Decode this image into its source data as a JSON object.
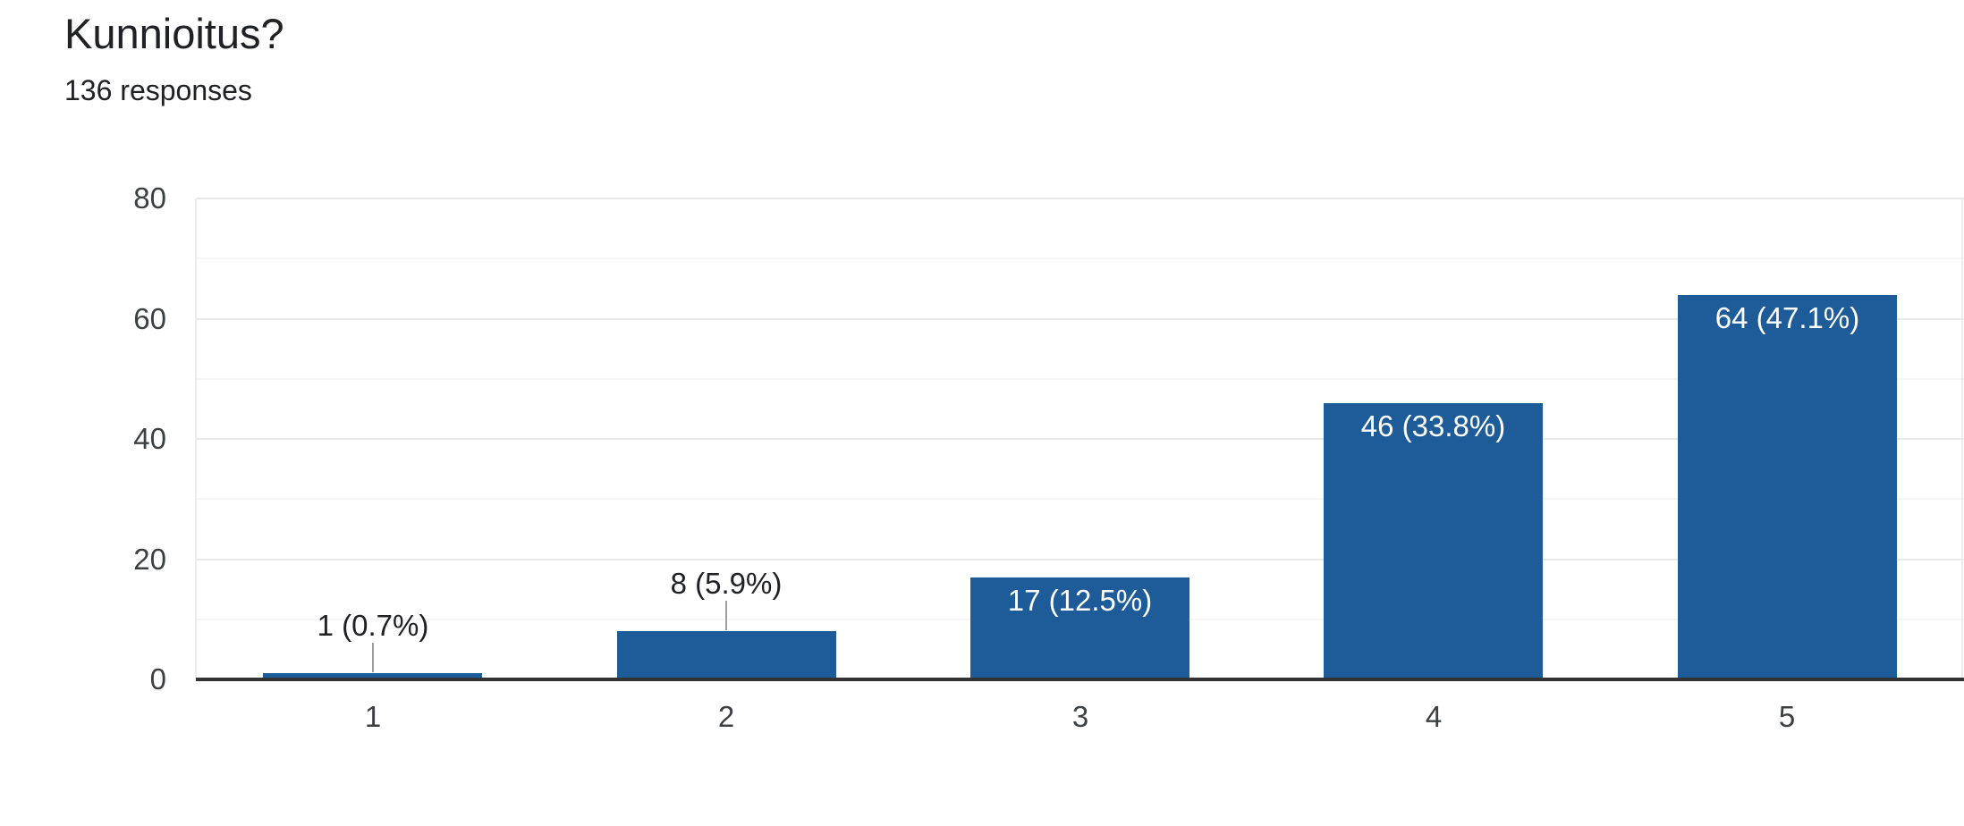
{
  "header": {
    "title": "Kunnioitus?",
    "subtitle": "136 responses"
  },
  "chart_data": {
    "type": "bar",
    "title": "Kunnioitus?",
    "subtitle": "136 responses",
    "total_responses": 136,
    "categories": [
      "1",
      "2",
      "3",
      "4",
      "5"
    ],
    "values": [
      1,
      8,
      17,
      46,
      64
    ],
    "percentages": [
      0.7,
      5.9,
      12.5,
      33.8,
      47.1
    ],
    "bar_labels": [
      "1 (0.7%)",
      "8 (5.9%)",
      "17 (12.5%)",
      "46 (33.8%)",
      "64 (47.1%)"
    ],
    "xlabel": "",
    "ylabel": "",
    "ylim": [
      0,
      80
    ],
    "y_tick_labels": [
      "0",
      "20",
      "40",
      "60",
      "80"
    ],
    "y_major_tick_step": 20,
    "y_minor_grid_step": 10,
    "grid": true,
    "legend": "none",
    "colors": {
      "bar": "#1e5b99",
      "major_gridline": "#e9e9e9",
      "minor_gridline": "#f5f5f5",
      "plot_border": "#ececec",
      "axis_line": "#333333",
      "axis_tick_label": "#3c4043",
      "inside_bar_label": "#ffffff",
      "outside_bar_label": "#202124",
      "leader_line": "#9e9e9e",
      "title": "#202124",
      "background": "#ffffff"
    }
  }
}
